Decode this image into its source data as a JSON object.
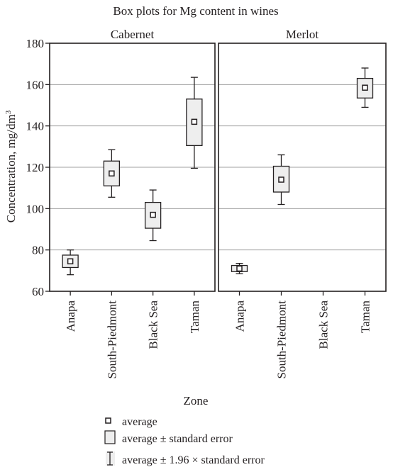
{
  "chart_data": {
    "type": "box",
    "title": "Box plots for Mg content in wines",
    "xlabel": "Zone",
    "ylabel": "Concentration, mg/dm",
    "ylabel_superscript": "3",
    "ylim": [
      60,
      180
    ],
    "yticks": [
      60,
      80,
      100,
      120,
      140,
      160,
      180
    ],
    "grid": true,
    "categories": [
      "Anapa",
      "South-Piedmont",
      "Black Sea",
      "Taman"
    ],
    "panels": [
      {
        "name": "Cabernet",
        "boxes": [
          {
            "category": "Anapa",
            "mean": 74.5,
            "se_low": 71.5,
            "se_high": 77.5,
            "ci_low": 68,
            "ci_high": 80
          },
          {
            "category": "South-Piedmont",
            "mean": 117,
            "se_low": 111,
            "se_high": 123,
            "ci_low": 105.5,
            "ci_high": 128.5
          },
          {
            "category": "Black Sea",
            "mean": 97,
            "se_low": 90.5,
            "se_high": 103,
            "ci_low": 84.5,
            "ci_high": 109
          },
          {
            "category": "Taman",
            "mean": 142,
            "se_low": 130.5,
            "se_high": 153,
            "ci_low": 119.5,
            "ci_high": 163.5
          }
        ]
      },
      {
        "name": "Merlot",
        "boxes": [
          {
            "category": "Anapa",
            "mean": 71,
            "se_low": 69.5,
            "se_high": 72.5,
            "ci_low": 68.5,
            "ci_high": 73.5
          },
          {
            "category": "South-Piedmont",
            "mean": 114,
            "se_low": 108,
            "se_high": 120.5,
            "ci_low": 102,
            "ci_high": 126
          },
          {
            "category": "Black Sea",
            "mean": null,
            "se_low": null,
            "se_high": null,
            "ci_low": null,
            "ci_high": null
          },
          {
            "category": "Taman",
            "mean": 158.5,
            "se_low": 153.5,
            "se_high": 163,
            "ci_low": 149,
            "ci_high": 168
          }
        ]
      }
    ],
    "legend": {
      "position": "bottom",
      "items": [
        {
          "symbol": "mean",
          "label": "average"
        },
        {
          "symbol": "box",
          "label": "average ± standard error"
        },
        {
          "symbol": "whisker",
          "label": "average ± 1.96 × standard error"
        }
      ]
    },
    "colors": {
      "box_fill": "#eeeeee",
      "stroke": "#231f20",
      "grid": "#a0a0a0"
    }
  }
}
